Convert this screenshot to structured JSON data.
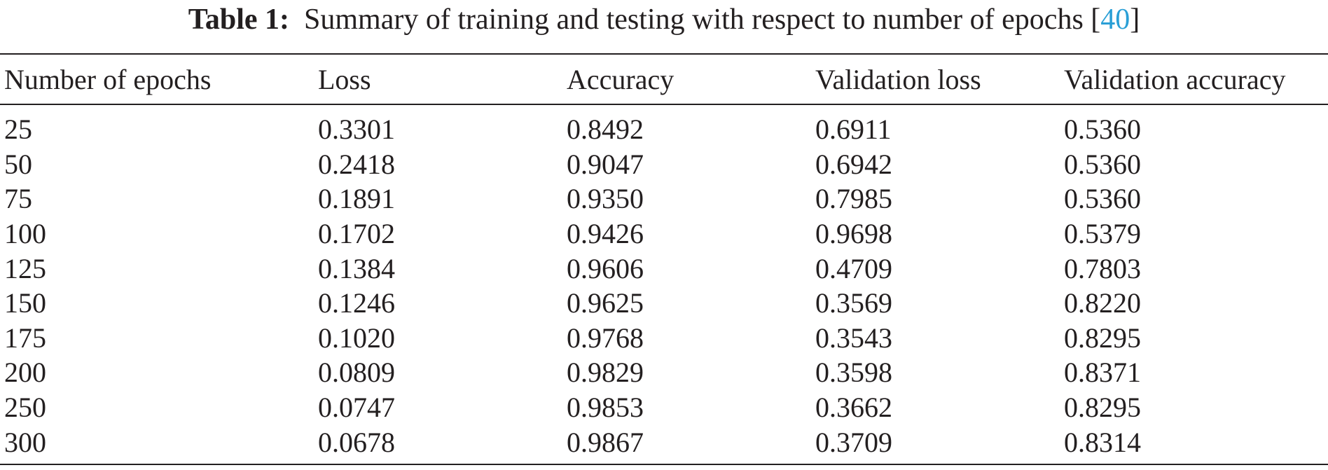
{
  "caption": {
    "label": "Table 1:",
    "text": "Summary of training and testing with respect to number of epochs [",
    "ref": "40",
    "close": "]"
  },
  "table": {
    "headers": [
      "Number of epochs",
      "Loss",
      "Accuracy",
      "Validation loss",
      "Validation accuracy"
    ],
    "rows": [
      [
        "25",
        "0.3301",
        "0.8492",
        "0.6911",
        "0.5360"
      ],
      [
        "50",
        "0.2418",
        "0.9047",
        "0.6942",
        "0.5360"
      ],
      [
        "75",
        "0.1891",
        "0.9350",
        "0.7985",
        "0.5360"
      ],
      [
        "100",
        "0.1702",
        "0.9426",
        "0.9698",
        "0.5379"
      ],
      [
        "125",
        "0.1384",
        "0.9606",
        "0.4709",
        "0.7803"
      ],
      [
        "150",
        "0.1246",
        "0.9625",
        "0.3569",
        "0.8220"
      ],
      [
        "175",
        "0.1020",
        "0.9768",
        "0.3543",
        "0.8295"
      ],
      [
        "200",
        "0.0809",
        "0.9829",
        "0.3598",
        "0.8371"
      ],
      [
        "250",
        "0.0747",
        "0.9853",
        "0.3662",
        "0.8295"
      ],
      [
        "300",
        "0.0678",
        "0.9867",
        "0.3709",
        "0.8314"
      ]
    ]
  },
  "colors": {
    "text": "#231f20",
    "reference_link": "#2a9fd6"
  }
}
